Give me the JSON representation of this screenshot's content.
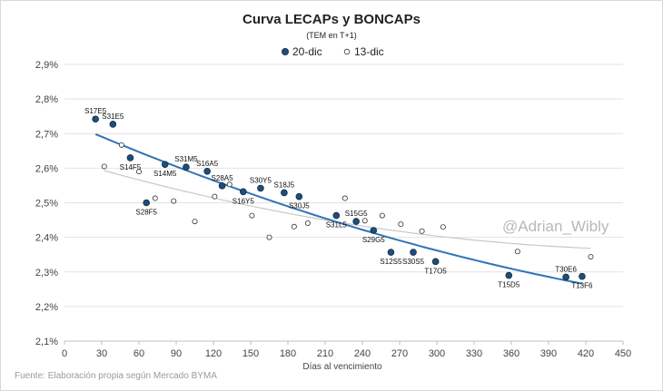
{
  "chart_data": {
    "type": "scatter",
    "title": "Curva LECAPs y BONCAPs",
    "subtitle": "(TEM en T+1)",
    "xlabel": "Días al vencimiento",
    "ylabel": "",
    "xlim": [
      0,
      450
    ],
    "ylim": [
      2.1,
      2.9
    ],
    "x_ticks": [
      "0",
      "30",
      "60",
      "90",
      "120",
      "150",
      "180",
      "210",
      "240",
      "270",
      "300",
      "330",
      "360",
      "390",
      "420",
      "450"
    ],
    "y_ticks": [
      "2,1%",
      "2,2%",
      "2,3%",
      "2,4%",
      "2,5%",
      "2,6%",
      "2,7%",
      "2,8%",
      "2,9%"
    ],
    "legend_position": "top",
    "series": [
      {
        "name": "20-dic",
        "color": "#1f4e79",
        "marker": "filled-circle",
        "points": [
          {
            "x": 25,
            "y": 2.742,
            "label": "S17E5"
          },
          {
            "x": 39,
            "y": 2.727,
            "label": "S31E5"
          },
          {
            "x": 53,
            "y": 2.63,
            "label": "S14F5"
          },
          {
            "x": 66,
            "y": 2.5,
            "label": "S28F5"
          },
          {
            "x": 81,
            "y": 2.611,
            "label": "S14M5"
          },
          {
            "x": 98,
            "y": 2.603,
            "label": "S31M5"
          },
          {
            "x": 115,
            "y": 2.591,
            "label": "S16A5"
          },
          {
            "x": 127,
            "y": 2.549,
            "label": "S28A5"
          },
          {
            "x": 144,
            "y": 2.532,
            "label": "S16Y5"
          },
          {
            "x": 158,
            "y": 2.542,
            "label": "S30Y5"
          },
          {
            "x": 177,
            "y": 2.529,
            "label": "S18J5"
          },
          {
            "x": 189,
            "y": 2.518,
            "label": "S30J5"
          },
          {
            "x": 219,
            "y": 2.463,
            "label": "S31L5"
          },
          {
            "x": 235,
            "y": 2.446,
            "label": "S15G5"
          },
          {
            "x": 249,
            "y": 2.42,
            "label": "S29G5"
          },
          {
            "x": 263,
            "y": 2.357,
            "label": "S12S5"
          },
          {
            "x": 281,
            "y": 2.357,
            "label": "S30S5"
          },
          {
            "x": 299,
            "y": 2.33,
            "label": "T17O5"
          },
          {
            "x": 358,
            "y": 2.29,
            "label": "T15D5"
          },
          {
            "x": 404,
            "y": 2.285,
            "label": "T30E6"
          },
          {
            "x": 417,
            "y": 2.287,
            "label": "T13F6"
          }
        ],
        "trendline_color": "#2e75b6"
      },
      {
        "name": "13-dic",
        "color": "#333333",
        "marker": "open-circle",
        "points": [
          {
            "x": 32,
            "y": 2.605
          },
          {
            "x": 46,
            "y": 2.667
          },
          {
            "x": 60,
            "y": 2.59
          },
          {
            "x": 73,
            "y": 2.513
          },
          {
            "x": 88,
            "y": 2.505
          },
          {
            "x": 105,
            "y": 2.446
          },
          {
            "x": 121,
            "y": 2.518
          },
          {
            "x": 133,
            "y": 2.553
          },
          {
            "x": 151,
            "y": 2.463
          },
          {
            "x": 165,
            "y": 2.4
          },
          {
            "x": 185,
            "y": 2.431
          },
          {
            "x": 196,
            "y": 2.441
          },
          {
            "x": 226,
            "y": 2.513
          },
          {
            "x": 242,
            "y": 2.448
          },
          {
            "x": 256,
            "y": 2.463
          },
          {
            "x": 271,
            "y": 2.438
          },
          {
            "x": 288,
            "y": 2.418
          },
          {
            "x": 305,
            "y": 2.43
          },
          {
            "x": 365,
            "y": 2.359
          },
          {
            "x": 424,
            "y": 2.344
          }
        ],
        "trendline_color": "#c8c8c8"
      }
    ],
    "annotations": {
      "watermark": "@Adrian_Wibly",
      "source": "Fuente: Elaboración propia según Mercado BYMA"
    },
    "grid": {
      "horizontal": true,
      "vertical": false
    }
  }
}
